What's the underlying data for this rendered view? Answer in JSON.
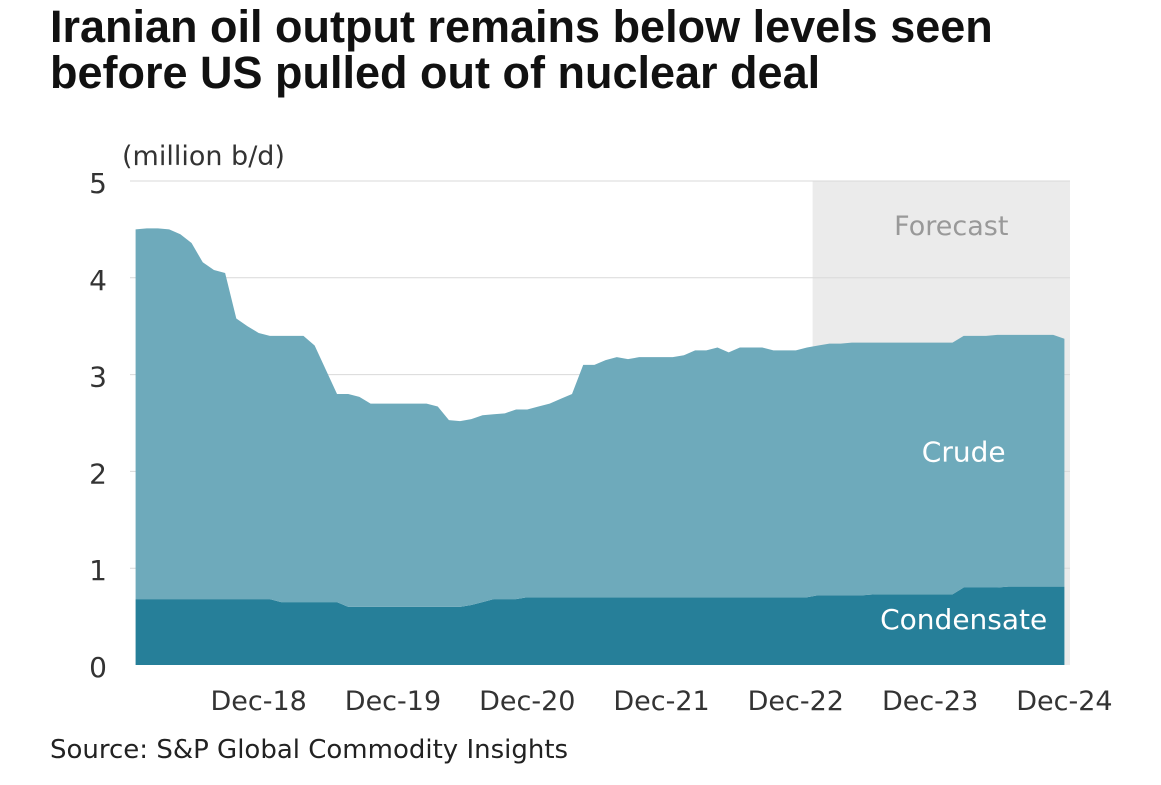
{
  "title": "Iranian oil output remains below levels seen before US pulled out of nuclear deal",
  "source": "Source: S&P Global Commodity Insights",
  "colors": {
    "crude": "#6eaabb",
    "condensate": "#267f99",
    "forecast_band": "#ebebeb",
    "gridline": "#d9d9d9"
  },
  "chart_data": {
    "type": "area",
    "stacked": true,
    "ylabel": "(million b/d)",
    "ylim": [
      0,
      5
    ],
    "y_ticks": [
      0,
      1,
      2,
      3,
      4,
      5
    ],
    "x_tick_labels": [
      "Dec-18",
      "Dec-19",
      "Dec-20",
      "Dec-21",
      "Dec-22",
      "Dec-23",
      "Dec-24"
    ],
    "x_start": "Jan-18",
    "forecast": {
      "label": "Forecast",
      "start": "Feb-23"
    },
    "series_labels": [
      {
        "series": "Crude",
        "text": "Crude",
        "x": "Mar-24",
        "y": 2.1
      },
      {
        "series": "Condensate",
        "text": "Condensate",
        "x": "Mar-24",
        "y": 0.37
      }
    ],
    "x": [
      "Jan-18",
      "Feb-18",
      "Mar-18",
      "Apr-18",
      "May-18",
      "Jun-18",
      "Jul-18",
      "Aug-18",
      "Sep-18",
      "Oct-18",
      "Nov-18",
      "Dec-18",
      "Jan-19",
      "Feb-19",
      "Mar-19",
      "Apr-19",
      "May-19",
      "Jun-19",
      "Jul-19",
      "Aug-19",
      "Sep-19",
      "Oct-19",
      "Nov-19",
      "Dec-19",
      "Jan-20",
      "Feb-20",
      "Mar-20",
      "Apr-20",
      "May-20",
      "Jun-20",
      "Jul-20",
      "Aug-20",
      "Sep-20",
      "Oct-20",
      "Nov-20",
      "Dec-20",
      "Jan-21",
      "Feb-21",
      "Mar-21",
      "Apr-21",
      "May-21",
      "Jun-21",
      "Jul-21",
      "Aug-21",
      "Sep-21",
      "Oct-21",
      "Nov-21",
      "Dec-21",
      "Jan-22",
      "Feb-22",
      "Mar-22",
      "Apr-22",
      "May-22",
      "Jun-22",
      "Jul-22",
      "Aug-22",
      "Sep-22",
      "Oct-22",
      "Nov-22",
      "Dec-22",
      "Jan-23",
      "Feb-23",
      "Mar-23",
      "Apr-23",
      "May-23",
      "Jun-23",
      "Jul-23",
      "Aug-23",
      "Sep-23",
      "Oct-23",
      "Nov-23",
      "Dec-23",
      "Jan-24",
      "Feb-24",
      "Mar-24",
      "Apr-24",
      "May-24",
      "Jun-24",
      "Jul-24",
      "Aug-24",
      "Sep-24",
      "Oct-24",
      "Nov-24",
      "Dec-24"
    ],
    "series": [
      {
        "name": "Condensate",
        "values": [
          0.68,
          0.68,
          0.68,
          0.68,
          0.68,
          0.68,
          0.68,
          0.68,
          0.68,
          0.68,
          0.68,
          0.68,
          0.68,
          0.65,
          0.65,
          0.65,
          0.65,
          0.65,
          0.65,
          0.6,
          0.6,
          0.6,
          0.6,
          0.6,
          0.6,
          0.6,
          0.6,
          0.6,
          0.6,
          0.6,
          0.62,
          0.65,
          0.68,
          0.68,
          0.68,
          0.7,
          0.7,
          0.7,
          0.7,
          0.7,
          0.7,
          0.7,
          0.7,
          0.7,
          0.7,
          0.7,
          0.7,
          0.7,
          0.7,
          0.7,
          0.7,
          0.7,
          0.7,
          0.7,
          0.7,
          0.7,
          0.7,
          0.7,
          0.7,
          0.7,
          0.7,
          0.72,
          0.72,
          0.72,
          0.72,
          0.72,
          0.73,
          0.73,
          0.73,
          0.73,
          0.73,
          0.73,
          0.73,
          0.73,
          0.8,
          0.8,
          0.8,
          0.8,
          0.81,
          0.81,
          0.81,
          0.81,
          0.81,
          0.81
        ]
      },
      {
        "name": "Crude",
        "values": [
          3.82,
          3.83,
          3.83,
          3.82,
          3.77,
          3.68,
          3.48,
          3.4,
          3.37,
          2.9,
          2.82,
          2.75,
          2.72,
          2.75,
          2.75,
          2.75,
          2.65,
          2.4,
          2.15,
          2.2,
          2.17,
          2.1,
          2.1,
          2.1,
          2.1,
          2.1,
          2.1,
          2.07,
          1.93,
          1.92,
          1.92,
          1.93,
          1.91,
          1.92,
          1.96,
          1.94,
          1.97,
          2.0,
          2.05,
          2.1,
          2.4,
          2.4,
          2.45,
          2.48,
          2.46,
          2.48,
          2.48,
          2.48,
          2.48,
          2.5,
          2.55,
          2.55,
          2.58,
          2.53,
          2.58,
          2.58,
          2.58,
          2.55,
          2.55,
          2.55,
          2.58,
          2.58,
          2.6,
          2.6,
          2.61,
          2.61,
          2.6,
          2.6,
          2.6,
          2.6,
          2.6,
          2.6,
          2.6,
          2.6,
          2.6,
          2.6,
          2.6,
          2.61,
          2.6,
          2.6,
          2.6,
          2.6,
          2.6,
          2.56
        ]
      }
    ]
  }
}
